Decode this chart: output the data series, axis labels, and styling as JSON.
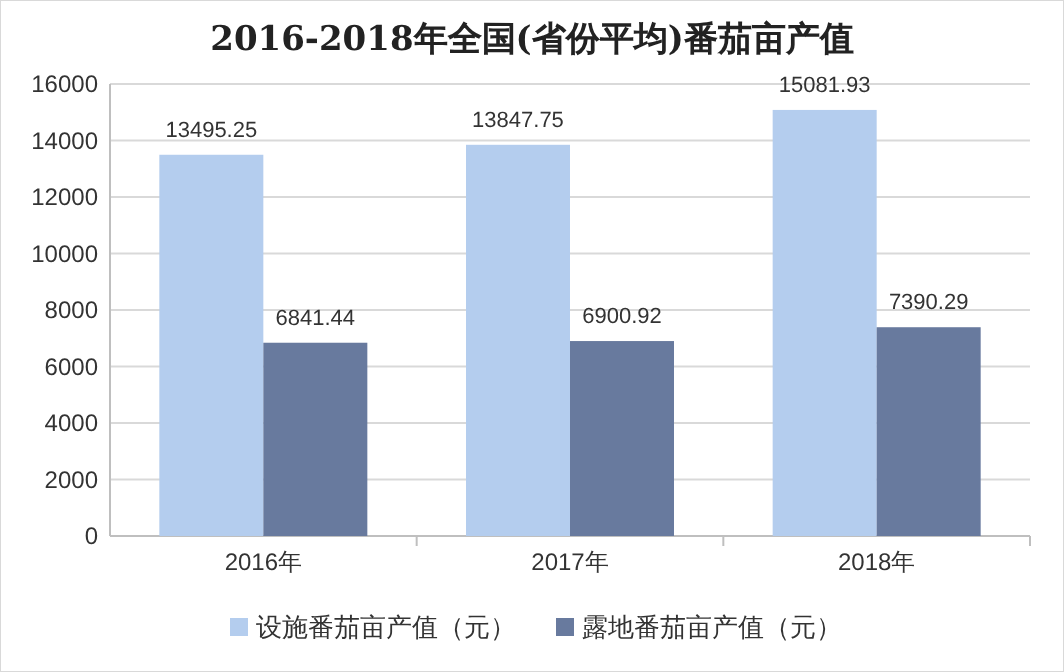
{
  "chart_data": {
    "type": "bar",
    "title": "2016-2018年全国(省份平均)番茄亩产值",
    "categories": [
      "2016年",
      "2017年",
      "2018年"
    ],
    "series": [
      {
        "name": "设施番茄亩产值（元）",
        "color": "#b4cdee",
        "values": [
          13495.25,
          13847.75,
          15081.93
        ]
      },
      {
        "name": "露地番茄亩产值（元）",
        "color": "#687a9e",
        "values": [
          6841.44,
          6900.92,
          7390.29
        ]
      }
    ],
    "ylim": [
      0,
      16000
    ],
    "yticks": [
      0,
      2000,
      4000,
      6000,
      8000,
      10000,
      12000,
      14000,
      16000
    ],
    "grid": "y",
    "legend": "bottom",
    "data_labels": true
  }
}
